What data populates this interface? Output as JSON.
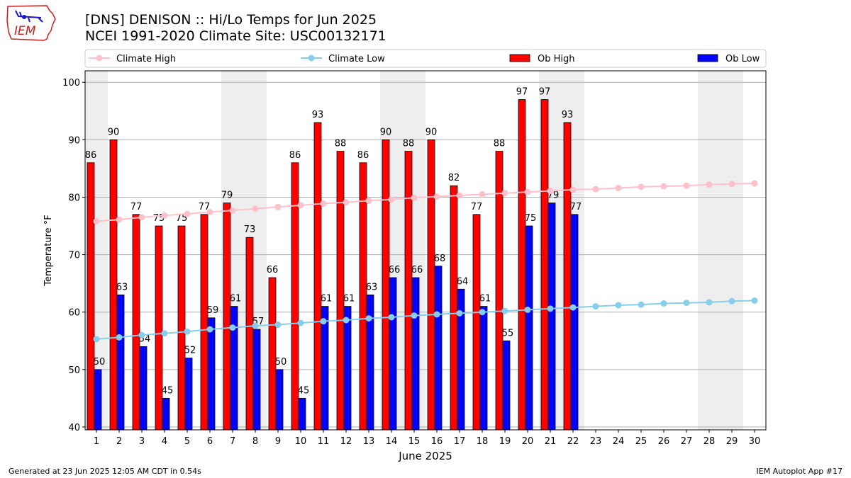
{
  "header": {
    "logo_text": "IEM",
    "title_line1": "[DNS] DENISON :: Hi/Lo Temps for Jun 2025",
    "title_line2": "NCEI 1991-2020 Climate Site: USC00132171"
  },
  "footer": {
    "generated": "Generated at 23 Jun 2025 12:05 AM CDT in 0.54s",
    "app": "IEM Autoplot App #17"
  },
  "chart_data": {
    "type": "bar",
    "xlabel": "June 2025",
    "ylabel": "Temperature °F",
    "ylim": [
      39.5,
      102
    ],
    "yticks": [
      40,
      50,
      60,
      70,
      80,
      90,
      100
    ],
    "grid": "horizontal",
    "legend_position": "top",
    "days": [
      1,
      2,
      3,
      4,
      5,
      6,
      7,
      8,
      9,
      10,
      11,
      12,
      13,
      14,
      15,
      16,
      17,
      18,
      19,
      20,
      21,
      22,
      23,
      24,
      25,
      26,
      27,
      28,
      29,
      30
    ],
    "weekend_days": [
      1,
      7,
      8,
      14,
      15,
      21,
      22,
      28,
      29
    ],
    "series": [
      {
        "name": "Climate High",
        "kind": "line",
        "color": "#ffc0cb",
        "values": [
          75.8,
          76.1,
          76.5,
          76.8,
          77.1,
          77.4,
          77.7,
          78.0,
          78.3,
          78.6,
          78.9,
          79.1,
          79.4,
          79.6,
          79.9,
          80.1,
          80.3,
          80.5,
          80.7,
          80.9,
          81.1,
          81.3,
          81.4,
          81.6,
          81.8,
          81.9,
          82.0,
          82.2,
          82.3,
          82.4
        ]
      },
      {
        "name": "Climate Low",
        "kind": "line",
        "color": "#87ceeb",
        "values": [
          55.3,
          55.6,
          56.0,
          56.3,
          56.6,
          57.0,
          57.3,
          57.6,
          57.8,
          58.1,
          58.4,
          58.6,
          58.9,
          59.1,
          59.4,
          59.6,
          59.8,
          60.0,
          60.2,
          60.4,
          60.6,
          60.8,
          61.0,
          61.2,
          61.3,
          61.5,
          61.6,
          61.7,
          61.9,
          62.0
        ]
      },
      {
        "name": "Ob High",
        "kind": "bar",
        "color": "#ff0000",
        "values": [
          86,
          90,
          77,
          75,
          75,
          77,
          79,
          73,
          66,
          86,
          93,
          88,
          86,
          90,
          88,
          90,
          82,
          77,
          88,
          97,
          97,
          93
        ]
      },
      {
        "name": "Ob Low",
        "kind": "bar",
        "color": "#0000ff",
        "values": [
          50,
          63,
          54,
          45,
          52,
          59,
          61,
          57,
          50,
          45,
          61,
          61,
          63,
          66,
          66,
          68,
          64,
          61,
          55,
          75,
          79,
          77
        ]
      }
    ]
  }
}
